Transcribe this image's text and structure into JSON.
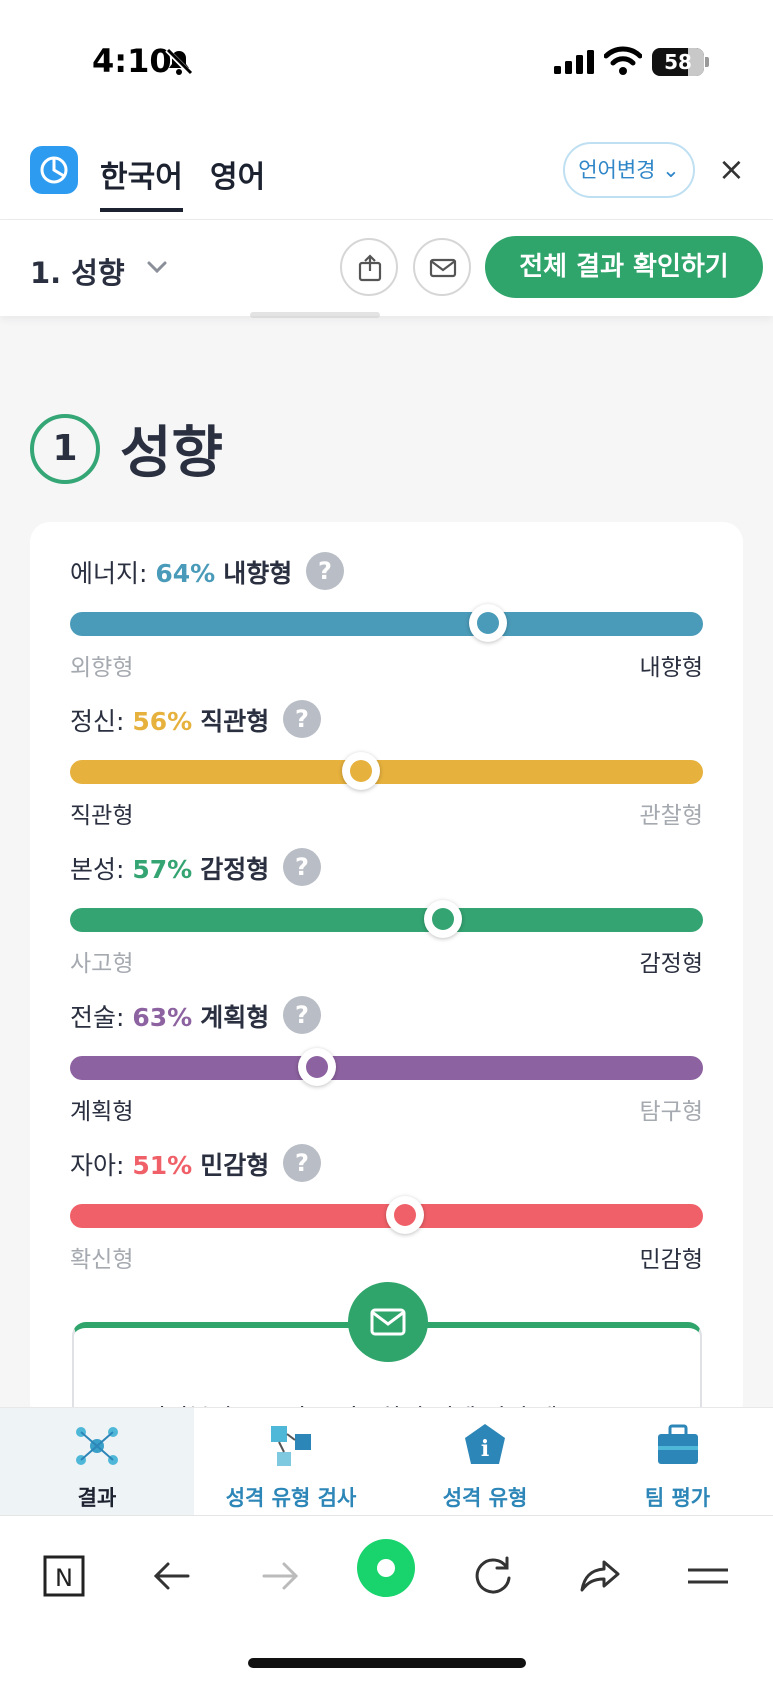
{
  "status": {
    "time": "4:10",
    "battery": "58"
  },
  "header": {
    "tabs": [
      "한국어",
      "영어"
    ],
    "lang_change": "언어변경",
    "close": "×"
  },
  "section_bar": {
    "selected": "1. 성향",
    "all_results": "전체 결과 확인하기"
  },
  "section": {
    "number": "1",
    "title": "성향"
  },
  "traits": [
    {
      "category": "에너지:",
      "percent": "64%",
      "type": "내향형",
      "left_end": "외향형",
      "right_end": "내향형",
      "position": 0.66,
      "color": "#4a9bb9",
      "highlight": "right"
    },
    {
      "category": "정신:",
      "percent": "56%",
      "type": "직관형",
      "left_end": "직관형",
      "right_end": "관찰형",
      "position": 0.46,
      "color": "#e6b13d",
      "highlight": "left"
    },
    {
      "category": "본성:",
      "percent": "57%",
      "type": "감정형",
      "left_end": "사고형",
      "right_end": "감정형",
      "position": 0.59,
      "color": "#34a472",
      "highlight": "right"
    },
    {
      "category": "전술:",
      "percent": "63%",
      "type": "계획형",
      "left_end": "계획형",
      "right_end": "탐구형",
      "position": 0.39,
      "color": "#8d62a0",
      "highlight": "left"
    },
    {
      "category": "자아:",
      "percent": "51%",
      "type": "민감형",
      "left_end": "확신형",
      "right_end": "민감형",
      "position": 0.53,
      "color": "#f06068",
      "highlight": "right"
    }
  ],
  "email_box": {
    "text": "여러분의 프로필로 이동하기 전에 먼저 테스트"
  },
  "app_nav": [
    {
      "label": "결과",
      "icon": "molecule-icon",
      "active": true
    },
    {
      "label": "성격 유형 검사",
      "icon": "network-cubes-icon",
      "active": false
    },
    {
      "label": "성격 유형",
      "icon": "info-gem-icon",
      "active": false
    },
    {
      "label": "팀 평가",
      "icon": "briefcase-icon",
      "active": false
    }
  ],
  "browser": {
    "home_letter": "N"
  }
}
